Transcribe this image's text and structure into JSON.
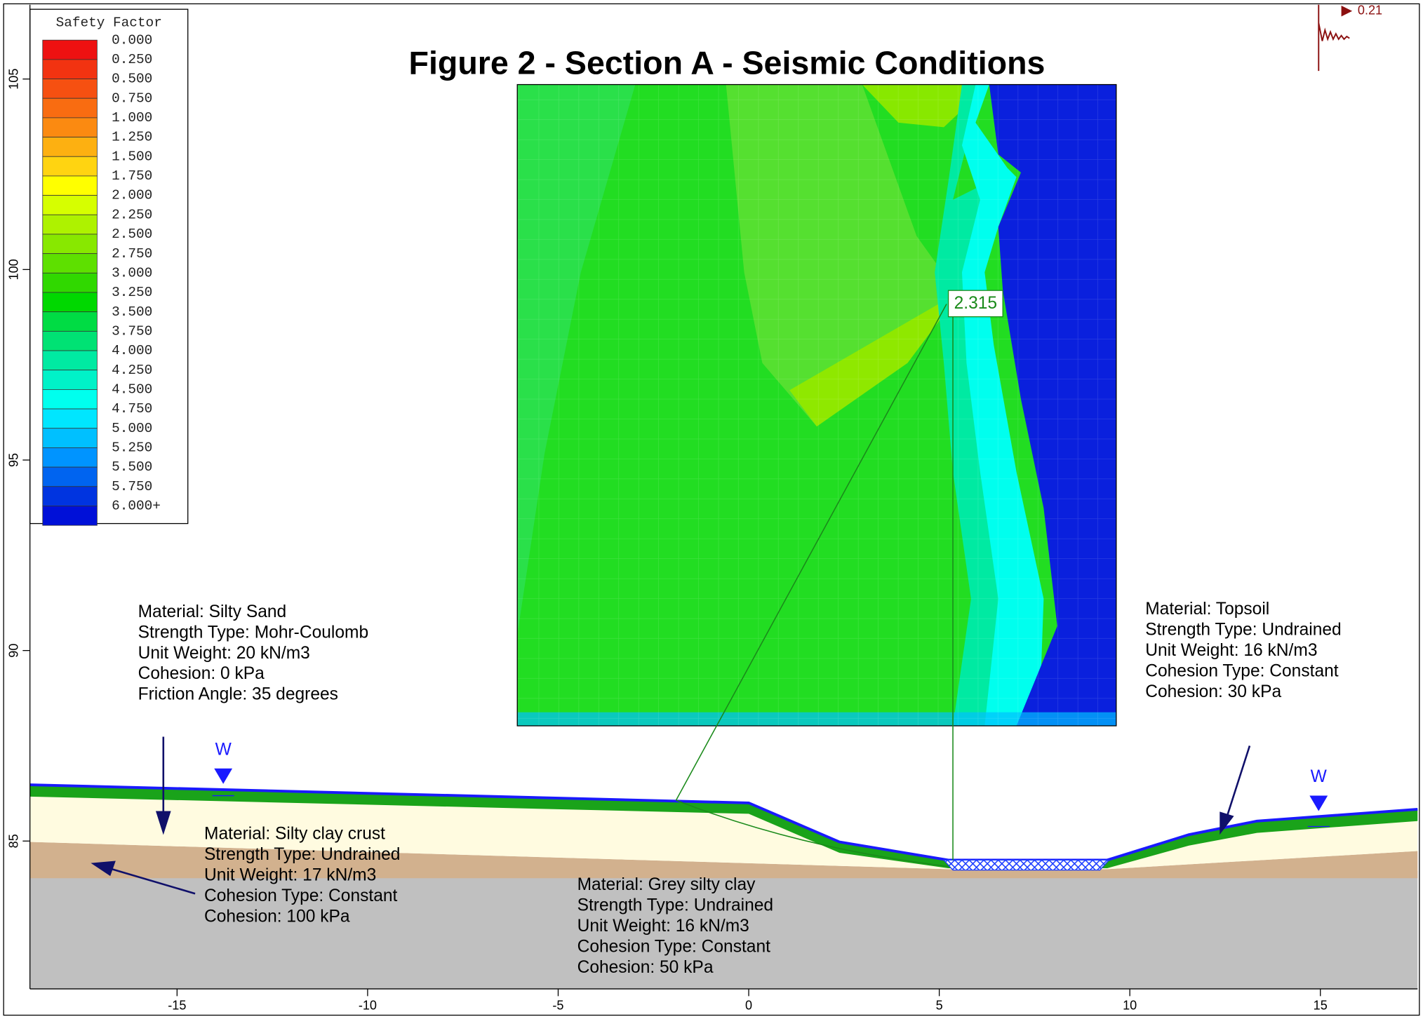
{
  "chart_data": {
    "type": "slope-section",
    "title": "Figure 2 - Section A - Seismic Conditions",
    "xlim": [
      -18.86,
      17.55
    ],
    "ylim": [
      81.12,
      106.95
    ],
    "xticks": [
      -15,
      -10,
      -5,
      0,
      5,
      10,
      15
    ],
    "yticks": [
      85,
      90,
      95,
      100,
      105
    ],
    "legend": {
      "title": "Safety Factor",
      "items": [
        {
          "label": "0.000",
          "color": "#ee1111"
        },
        {
          "label": "0.250",
          "color": "#f23311"
        },
        {
          "label": "0.500",
          "color": "#f65011"
        },
        {
          "label": "0.750",
          "color": "#f96c11"
        },
        {
          "label": "1.000",
          "color": "#fb8a11"
        },
        {
          "label": "1.250",
          "color": "#fdb011"
        },
        {
          "label": "1.500",
          "color": "#ffd411"
        },
        {
          "label": "1.750",
          "color": "#ffff00"
        },
        {
          "label": "2.000",
          "color": "#d6ff00"
        },
        {
          "label": "2.250",
          "color": "#aef200"
        },
        {
          "label": "2.500",
          "color": "#88e800"
        },
        {
          "label": "2.750",
          "color": "#5ee000"
        },
        {
          "label": "3.000",
          "color": "#30d800"
        },
        {
          "label": "3.250",
          "color": "#00d800"
        },
        {
          "label": "3.500",
          "color": "#00dc44"
        },
        {
          "label": "3.750",
          "color": "#00e274"
        },
        {
          "label": "4.000",
          "color": "#00eaa2"
        },
        {
          "label": "4.250",
          "color": "#00f2c8"
        },
        {
          "label": "4.500",
          "color": "#00ffee"
        },
        {
          "label": "4.750",
          "color": "#00e6ff"
        },
        {
          "label": "5.000",
          "color": "#00c0ff"
        },
        {
          "label": "5.250",
          "color": "#0094ff"
        },
        {
          "label": "5.500",
          "color": "#0064f0"
        },
        {
          "label": "5.750",
          "color": "#0034e0"
        },
        {
          "label": "6.000+",
          "color": "#0010d8"
        }
      ]
    },
    "min_safety_factor": "2.315",
    "seismic_coefficient": "0.21",
    "water_label": "W",
    "materials": [
      {
        "lines": [
          "Material: Silty Sand",
          "Strength Type: Mohr-Coulomb",
          "Unit Weight: 20 kN/m3",
          "Cohesion: 0 kPa",
          "Friction Angle: 35 degrees"
        ]
      },
      {
        "lines": [
          "Material: Topsoil",
          "Strength Type: Undrained",
          "Unit Weight: 16 kN/m3",
          "Cohesion Type: Constant",
          "Cohesion: 30 kPa"
        ]
      },
      {
        "lines": [
          "Material: Silty clay crust",
          "Strength Type: Undrained",
          "Unit Weight: 17 kN/m3",
          "Cohesion Type: Constant",
          "Cohesion: 100 kPa"
        ]
      },
      {
        "lines": [
          "Material: Grey silty clay",
          "Strength Type: Undrained",
          "Unit Weight: 16 kN/m3",
          "Cohesion Type: Constant",
          "Cohesion: 50 kPa"
        ]
      }
    ]
  }
}
